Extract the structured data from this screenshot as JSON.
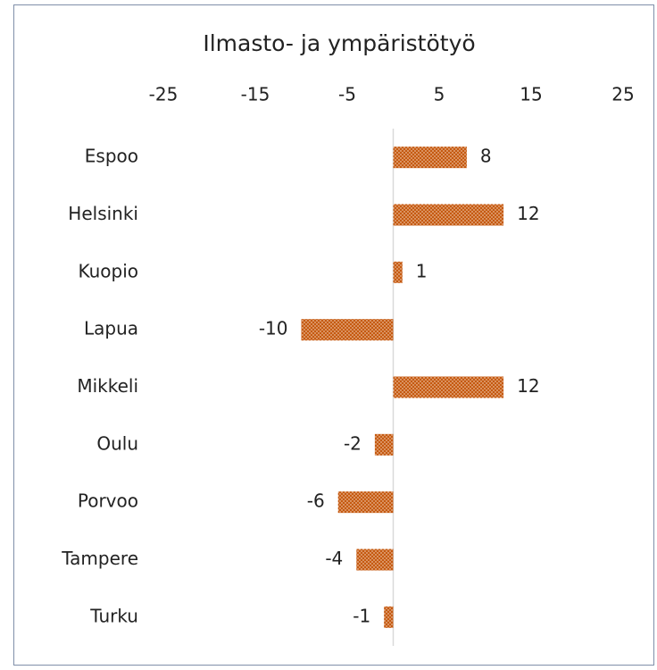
{
  "chart_data": {
    "type": "hbar",
    "title": "Ilmasto- ja ympäristötyö",
    "categories": [
      "Espoo",
      "Helsinki",
      "Kuopio",
      "Lapua",
      "Mikkeli",
      "Oulu",
      "Porvoo",
      "Tampere",
      "Turku"
    ],
    "values": [
      8,
      12,
      1,
      -10,
      12,
      -2,
      -6,
      -4,
      -1
    ],
    "color": "#c55a11",
    "xlim": [
      -25,
      25
    ],
    "xticks": [
      -25,
      -15,
      -5,
      5,
      15,
      25
    ]
  }
}
